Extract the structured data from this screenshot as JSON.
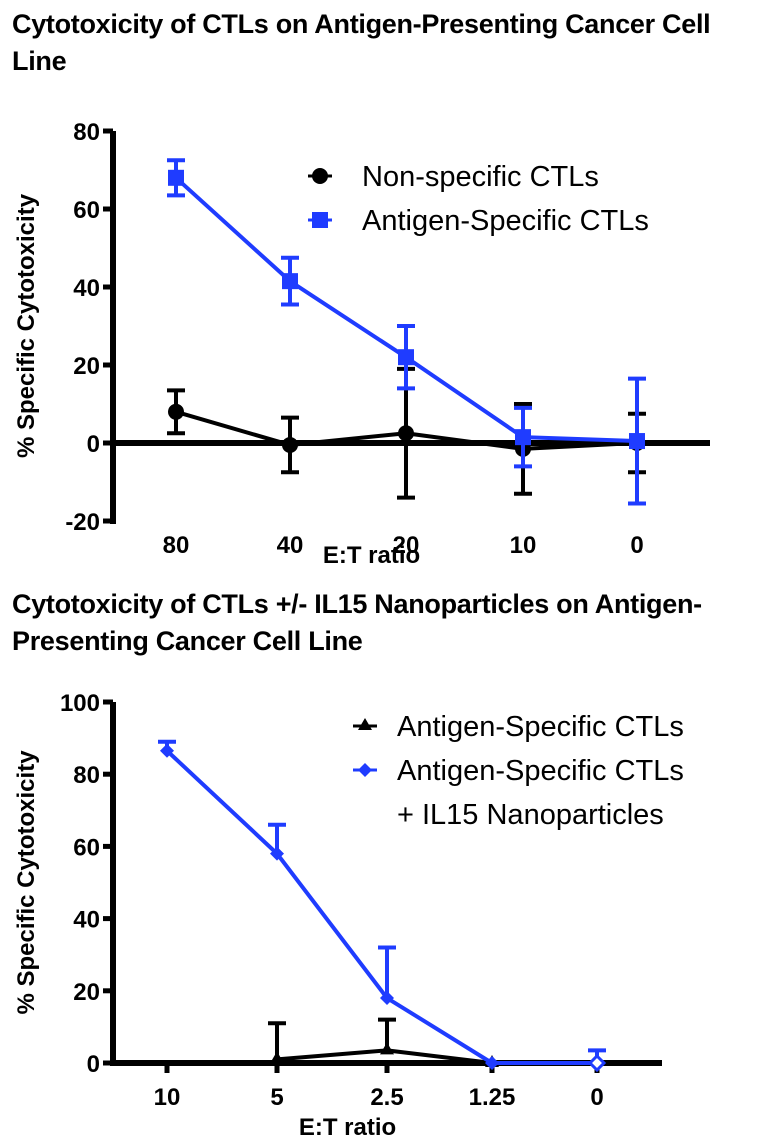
{
  "chart_data": [
    {
      "type": "line",
      "title": "Cytotoxicity of CTLs on Antigen-Presenting Cancer Cell Line",
      "xlabel": "E:T ratio",
      "ylabel": "% Specific Cytotoxicity",
      "categories": [
        "80",
        "40",
        "20",
        "10",
        "0"
      ],
      "ylim": [
        -20,
        80
      ],
      "yticks": [
        -20,
        0,
        20,
        40,
        60,
        80
      ],
      "grid": false,
      "legend_position": "top-right",
      "series": [
        {
          "name": "Non-specific CTLs",
          "color": "#000000",
          "marker": "circle",
          "values": [
            8,
            -0.5,
            2.5,
            -1.5,
            0
          ],
          "error": [
            5.5,
            7,
            16.5,
            11.5,
            7.5
          ]
        },
        {
          "name": "Antigen-Specific CTLs",
          "color": "#1f3cff",
          "marker": "square",
          "values": [
            68,
            41.5,
            22,
            1.5,
            0.5
          ],
          "error": [
            4.5,
            6,
            8,
            7.5,
            16
          ]
        }
      ]
    },
    {
      "type": "line",
      "title": "Cytotoxicity of CTLs +/- IL15 Nanoparticles on Antigen-Presenting Cancer Cell Line",
      "xlabel": "E:T ratio",
      "ylabel": "% Specific Cytotoxicity",
      "categories": [
        "10",
        "5",
        "2.5",
        "1.25",
        "0"
      ],
      "ylim": [
        0,
        100
      ],
      "yticks": [
        0,
        20,
        40,
        60,
        80,
        100
      ],
      "grid": false,
      "legend_position": "top-right",
      "series": [
        {
          "name": "Antigen-Specific CTLs",
          "color": "#000000",
          "marker": "triangle",
          "values": [
            null,
            1,
            3.5,
            0,
            null
          ],
          "error": [
            null,
            10,
            8.5,
            0,
            null
          ]
        },
        {
          "name": "Antigen-Specific CTLs + IL15 Nanoparticles",
          "legend_lines": [
            "Antigen-Specific CTLs",
            "+ IL15 Nanoparticles"
          ],
          "color": "#1f3cff",
          "marker": "diamond",
          "values": [
            86.5,
            58,
            18,
            0,
            0
          ],
          "error": [
            2.5,
            8,
            14,
            0,
            3.5
          ]
        }
      ]
    }
  ]
}
